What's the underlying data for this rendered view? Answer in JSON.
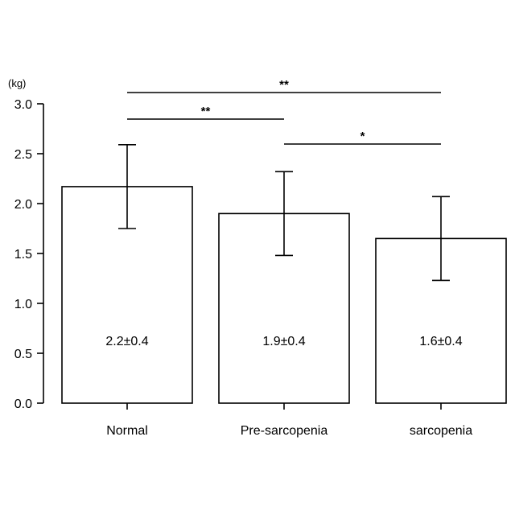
{
  "chart_data": {
    "type": "bar",
    "unit_label": "(kg)",
    "categories": [
      "Normal",
      "Pre-sarcopenia",
      "sarcopenia"
    ],
    "values": [
      2.17,
      1.9,
      1.65
    ],
    "errors": [
      0.42,
      0.42,
      0.42
    ],
    "data_labels": [
      "2.2±0.4",
      "1.9±0.4",
      "1.6±0.4"
    ],
    "ylim": [
      0,
      3.0
    ],
    "yticks": [
      "0.0",
      "0.5",
      "1.0",
      "1.5",
      "2.0",
      "2.5",
      "3.0"
    ],
    "significance": [
      {
        "from": 0,
        "to": 2,
        "label": "**"
      },
      {
        "from": 0,
        "to": 1,
        "label": "**"
      },
      {
        "from": 1,
        "to": 2,
        "label": "*"
      }
    ],
    "colors": {
      "bar_fill": "#ffffff",
      "stroke": "#000000"
    }
  }
}
